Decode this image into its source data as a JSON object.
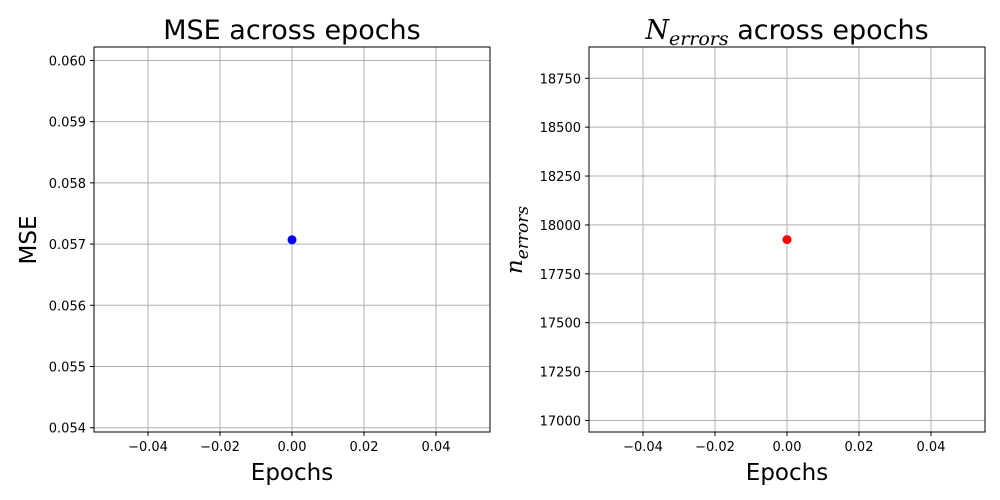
{
  "chart_data": [
    {
      "type": "scatter",
      "title": "MSE across epochs",
      "xlabel": "Epochs",
      "ylabel": "MSE",
      "xlim": [
        -0.055,
        0.055
      ],
      "ylim": [
        0.05393,
        0.06022
      ],
      "xticks": [
        -0.04,
        -0.02,
        0.0,
        0.02,
        0.04
      ],
      "xtick_labels": [
        "−0.04",
        "−0.02",
        "0.00",
        "0.02",
        "0.04"
      ],
      "yticks": [
        0.054,
        0.055,
        0.056,
        0.057,
        0.058,
        0.059,
        0.06
      ],
      "ytick_labels": [
        "0.054",
        "0.055",
        "0.056",
        "0.057",
        "0.058",
        "0.059",
        "0.060"
      ],
      "grid": true,
      "series": [
        {
          "x": [
            0
          ],
          "y": [
            0.05707
          ],
          "color": "#0000ff"
        }
      ]
    },
    {
      "type": "scatter",
      "title_math": "N",
      "title_math_sub": "errors",
      "title_rest": " across epochs",
      "xlabel": "Epochs",
      "ylabel_math": "n",
      "ylabel_math_sub": "errors",
      "xlim": [
        -0.055,
        0.055
      ],
      "ylim": [
        16941,
        18910
      ],
      "xticks": [
        -0.04,
        -0.02,
        0.0,
        0.02,
        0.04
      ],
      "xtick_labels": [
        "−0.04",
        "−0.02",
        "0.00",
        "0.02",
        "0.04"
      ],
      "yticks": [
        17000,
        17250,
        17500,
        17750,
        18000,
        18250,
        18500,
        18750
      ],
      "ytick_labels": [
        "17000",
        "17250",
        "17500",
        "17750",
        "18000",
        "18250",
        "18500",
        "18750"
      ],
      "grid": true,
      "series": [
        {
          "x": [
            0
          ],
          "y": [
            17925
          ],
          "color": "#ff0000"
        }
      ]
    }
  ]
}
